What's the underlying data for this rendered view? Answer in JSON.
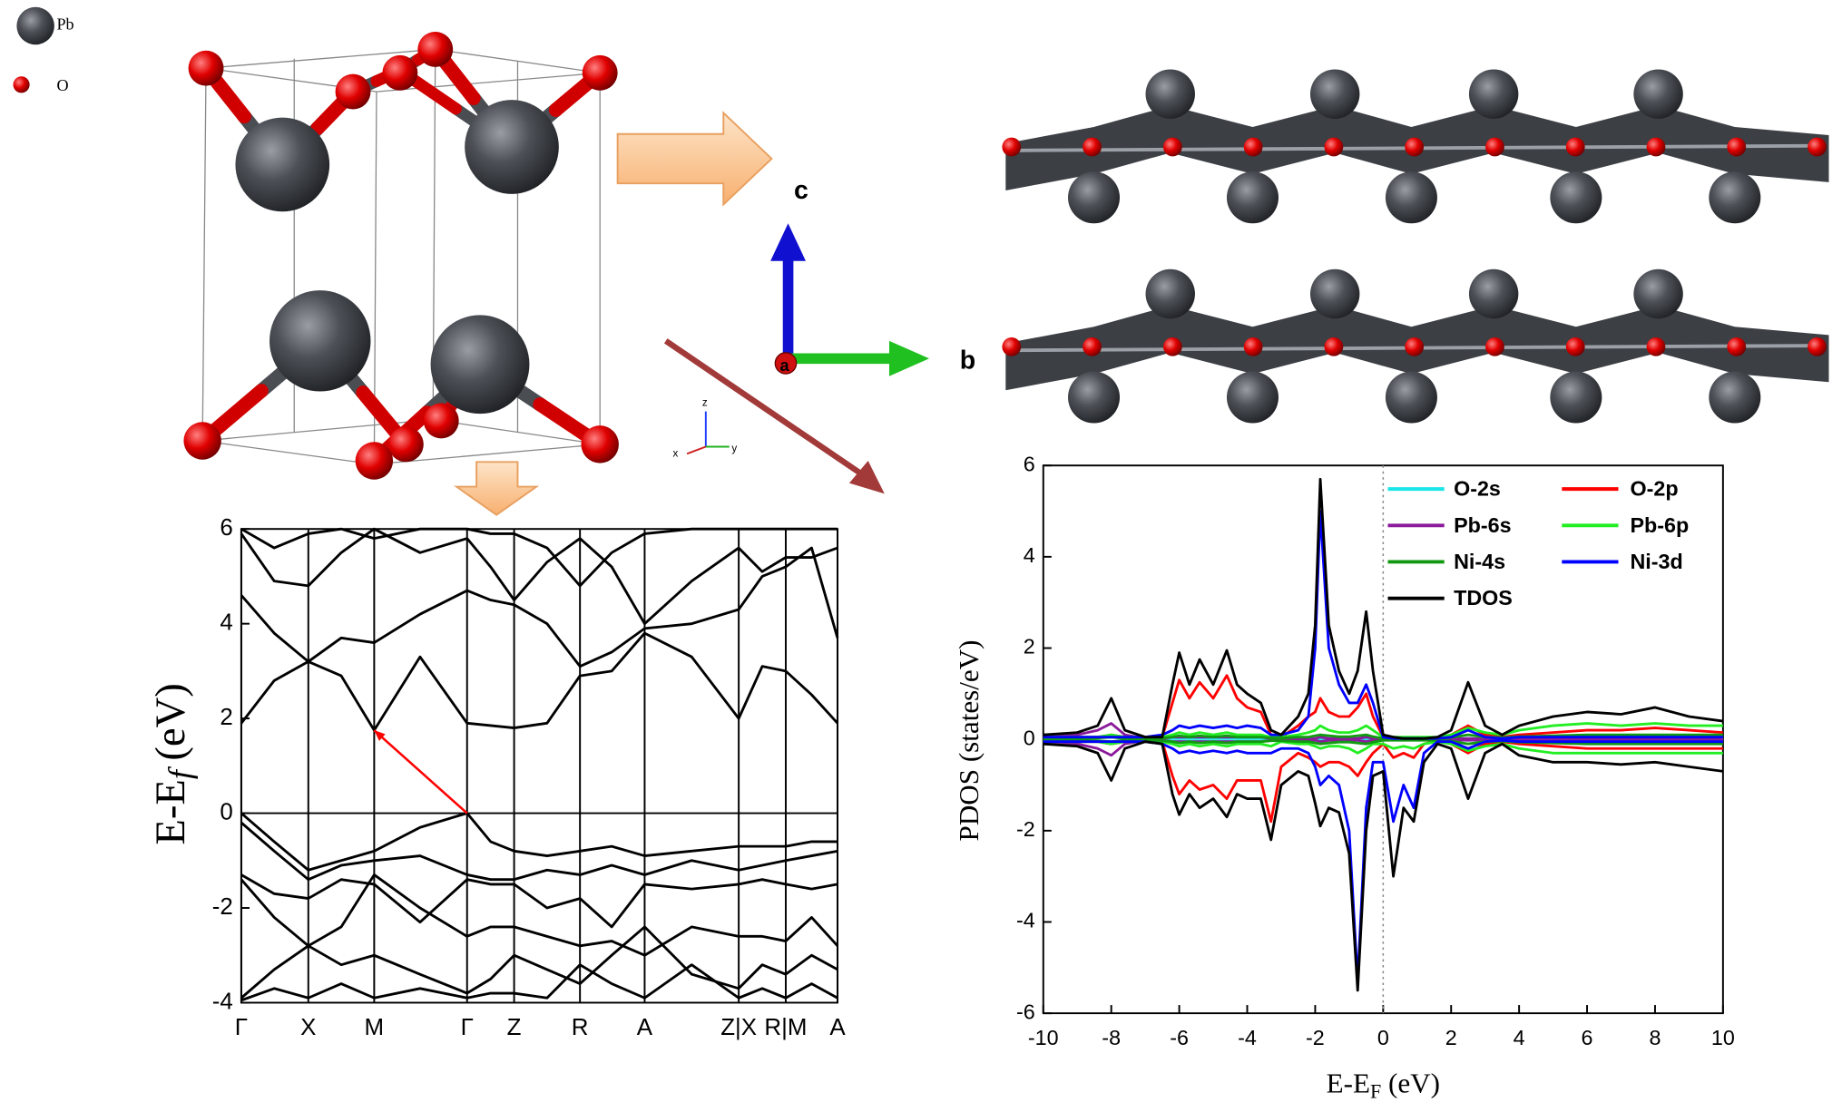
{
  "structure": {
    "atoms": [
      "Pb",
      "O"
    ],
    "axes": [
      "c",
      "a",
      "b"
    ],
    "triad": [
      "z",
      "x",
      "y"
    ]
  },
  "chart_data": [
    {
      "type": "line",
      "ylabel": [
        "E-E",
        "f",
        "(eV)"
      ],
      "xlim": [
        0,
        507
      ],
      "ylim": [
        -4,
        6
      ],
      "yticks": [
        -4,
        -2,
        0,
        2,
        4,
        6
      ],
      "xticks": [
        {
          "value": 0,
          "label": "Γ"
        },
        {
          "value": 57,
          "label": "X"
        },
        {
          "value": 113,
          "label": "M"
        },
        {
          "value": 192,
          "label": "Γ"
        },
        {
          "value": 232,
          "label": "Z"
        },
        {
          "value": 288,
          "label": "R"
        },
        {
          "value": 343,
          "label": "A"
        },
        {
          "value": 423,
          "label": "Z|X"
        },
        {
          "value": 463,
          "label": "R|M"
        },
        {
          "value": 507,
          "label": "A"
        }
      ],
      "xtick_lines": true,
      "fermi_line": "y",
      "color": "#000000",
      "x": [
        0,
        28,
        57,
        85,
        113,
        152,
        192,
        212,
        232,
        260,
        288,
        315,
        343,
        383,
        423,
        443,
        463,
        485,
        507
      ],
      "series": [
        {
          "values": [
            1.9,
            2.8,
            3.2,
            2.9,
            1.75,
            3.3,
            1.9,
            1.85,
            1.8,
            1.9,
            2.9,
            3.0,
            3.8,
            3.3,
            2.0,
            3.1,
            3.0,
            2.5,
            1.9
          ]
        },
        {
          "values": [
            4.6,
            3.8,
            3.2,
            3.7,
            3.6,
            4.2,
            4.7,
            4.5,
            4.4,
            4.0,
            3.1,
            3.4,
            3.9,
            4.0,
            4.3,
            5.0,
            5.2,
            5.6,
            3.7
          ]
        },
        {
          "values": [
            5.9,
            4.9,
            4.8,
            5.5,
            6.0,
            5.5,
            5.8,
            5.2,
            4.5,
            5.3,
            5.8,
            5.2,
            4.0,
            4.9,
            5.6,
            5.1,
            5.4,
            5.4,
            5.6
          ]
        },
        {
          "values": [
            6.0,
            5.6,
            5.9,
            6.0,
            5.8,
            6.0,
            6.0,
            5.9,
            5.9,
            5.6,
            4.8,
            5.5,
            5.9,
            6.0,
            6.0,
            6.0,
            6.0,
            6.0,
            6.0
          ]
        },
        {
          "values": [
            0,
            -0.6,
            -1.2,
            -1.0,
            -0.8,
            -0.3,
            0,
            -0.6,
            -0.8,
            -0.9,
            -0.8,
            -0.7,
            -0.9,
            -0.8,
            -0.7,
            -0.7,
            -0.7,
            -0.6,
            -0.6
          ]
        },
        {
          "values": [
            -0.2,
            -0.8,
            -1.4,
            -1.1,
            -1.0,
            -0.9,
            -1.3,
            -1.4,
            -1.4,
            -1.2,
            -1.3,
            -1.1,
            -1.3,
            -1.0,
            -1.2,
            -1.1,
            -1.0,
            -0.9,
            -0.8
          ]
        },
        {
          "values": [
            -1.3,
            -1.7,
            -1.8,
            -1.4,
            -1.5,
            -2.3,
            -1.4,
            -1.5,
            -1.5,
            -2.0,
            -1.8,
            -2.4,
            -1.5,
            -1.6,
            -1.5,
            -1.4,
            -1.5,
            -1.6,
            -1.5
          ]
        },
        {
          "values": [
            -1.4,
            -2.2,
            -2.8,
            -2.4,
            -1.3,
            -2.0,
            -2.6,
            -2.4,
            -2.4,
            -2.6,
            -2.8,
            -2.7,
            -3.0,
            -2.4,
            -2.6,
            -2.6,
            -2.7,
            -2.2,
            -2.8
          ]
        },
        {
          "values": [
            -3.9,
            -3.3,
            -2.8,
            -3.2,
            -3.0,
            -3.4,
            -3.8,
            -3.5,
            -3.0,
            -3.3,
            -3.6,
            -3.0,
            -2.4,
            -3.4,
            -3.7,
            -3.2,
            -3.4,
            -3.0,
            -3.3
          ]
        },
        {
          "values": [
            -3.95,
            -3.7,
            -3.9,
            -3.6,
            -3.9,
            -3.7,
            -3.9,
            -3.8,
            -3.8,
            -3.9,
            -3.2,
            -3.6,
            -3.9,
            -3.2,
            -3.9,
            -3.7,
            -3.9,
            -3.6,
            -3.9
          ]
        }
      ],
      "arrow": {
        "x": [
          192,
          113
        ],
        "y": [
          0,
          1.75
        ],
        "color": "#ff0000"
      }
    },
    {
      "type": "line",
      "xlabel": [
        "E-E",
        "F",
        "(eV)"
      ],
      "ylabel": "PDOS (states/eV)",
      "xlim": [
        -10,
        10
      ],
      "ylim": [
        -6,
        6
      ],
      "xticks": [
        -10,
        -8,
        -6,
        -4,
        -2,
        0,
        2,
        4,
        6,
        8,
        10
      ],
      "yticks": [
        -6,
        -4,
        -2,
        0,
        2,
        4,
        6
      ],
      "fermi_line": "x",
      "legend": "upper right",
      "x": [
        -10,
        -9,
        -8.4,
        -8,
        -7.6,
        -7,
        -6.5,
        -6.2,
        -6,
        -5.7,
        -5.4,
        -5,
        -4.6,
        -4.3,
        -4,
        -3.6,
        -3.3,
        -3,
        -2.5,
        -2.2,
        -2,
        -1.85,
        -1.6,
        -1.3,
        -1,
        -0.75,
        -0.5,
        -0.3,
        0,
        0.3,
        0.6,
        0.9,
        1.2,
        1.6,
        2,
        2.5,
        3,
        3.5,
        4,
        5,
        6,
        7,
        8,
        9,
        10
      ],
      "series": [
        {
          "name": "O-2s",
          "color": "#19e6e6",
          "values": [
            0.03,
            0.03,
            0.04,
            0.05,
            0.03,
            0.02,
            0.02,
            0.03,
            0.03,
            0.03,
            0.03,
            0.03,
            0.03,
            0.03,
            0.03,
            0.03,
            0.02,
            0.02,
            0.02,
            0.02,
            0.02,
            0.03,
            0.02,
            0.02,
            0.02,
            0.02,
            0.03,
            0.02,
            0.01,
            0.01,
            0.01,
            0.01,
            0.01,
            0.01,
            0.01,
            0.02,
            0.01,
            0.01,
            0.01,
            0.02,
            0.02,
            0.02,
            0.02,
            0.02,
            0.02
          ],
          "values_down": [
            -0.03,
            -0.03,
            -0.04,
            -0.05,
            -0.03,
            -0.02,
            -0.02,
            -0.03,
            -0.03,
            -0.03,
            -0.03,
            -0.03,
            -0.03,
            -0.03,
            -0.03,
            -0.03,
            -0.02,
            -0.02,
            -0.02,
            -0.02,
            -0.02,
            -0.03,
            -0.02,
            -0.02,
            -0.02,
            -0.02,
            -0.03,
            -0.02,
            -0.01,
            -0.01,
            -0.01,
            -0.01,
            -0.01,
            -0.01,
            -0.01,
            -0.02,
            -0.01,
            -0.01,
            -0.01,
            -0.02,
            -0.02,
            -0.02,
            -0.02,
            -0.02,
            -0.02
          ]
        },
        {
          "name": "O-2p",
          "color": "#ff0000",
          "values": [
            0.05,
            0.05,
            0.05,
            0.1,
            0.05,
            0.02,
            0.05,
            0.8,
            1.3,
            0.9,
            1.25,
            0.9,
            1.4,
            0.9,
            0.7,
            0.6,
            0.1,
            0.05,
            0.3,
            0.5,
            0.6,
            0.9,
            0.6,
            0.5,
            0.5,
            0.7,
            1.0,
            0.5,
            0.05,
            0.02,
            0.02,
            0.02,
            0.02,
            0.03,
            0.1,
            0.3,
            0.1,
            0.05,
            0.1,
            0.15,
            0.2,
            0.2,
            0.25,
            0.2,
            0.15
          ],
          "values_down": [
            -0.05,
            -0.05,
            -0.05,
            -0.1,
            -0.05,
            -0.02,
            -0.05,
            -0.8,
            -1.2,
            -0.9,
            -1.1,
            -1.0,
            -1.3,
            -0.9,
            -0.9,
            -0.9,
            -1.8,
            -0.6,
            -0.3,
            -0.4,
            -0.5,
            -0.6,
            -0.5,
            -0.5,
            -0.6,
            -0.8,
            -0.5,
            -0.3,
            -0.1,
            -0.4,
            -0.3,
            -0.4,
            -0.1,
            -0.03,
            -0.1,
            -0.3,
            -0.1,
            -0.05,
            -0.1,
            -0.15,
            -0.2,
            -0.2,
            -0.2,
            -0.2,
            -0.2
          ]
        },
        {
          "name": "Pb-6s",
          "color": "#8b1a9b",
          "values": [
            0.1,
            0.1,
            0.2,
            0.35,
            0.1,
            0.02,
            0.02,
            0.05,
            0.05,
            0.05,
            0.05,
            0.05,
            0.05,
            0.05,
            0.05,
            0.05,
            0.02,
            0.02,
            0.02,
            0.02,
            0.02,
            0.05,
            0.02,
            0.02,
            0.02,
            0.02,
            0.05,
            0.02,
            0.01,
            0.01,
            0.01,
            0.01,
            0.01,
            0.01,
            0.01,
            0.02,
            0.01,
            0.01,
            0.01,
            0.02,
            0.02,
            0.02,
            0.02,
            0.02,
            0.02
          ],
          "values_down": [
            -0.1,
            -0.1,
            -0.2,
            -0.35,
            -0.1,
            -0.02,
            -0.02,
            -0.05,
            -0.05,
            -0.05,
            -0.05,
            -0.05,
            -0.05,
            -0.05,
            -0.05,
            -0.05,
            -0.02,
            -0.02,
            -0.02,
            -0.02,
            -0.02,
            -0.05,
            -0.02,
            -0.02,
            -0.02,
            -0.02,
            -0.05,
            -0.02,
            -0.01,
            -0.01,
            -0.01,
            -0.01,
            -0.01,
            -0.01,
            -0.01,
            -0.02,
            -0.01,
            -0.01,
            -0.01,
            -0.02,
            -0.02,
            -0.02,
            -0.02,
            -0.02,
            -0.02
          ]
        },
        {
          "name": "Pb-6p",
          "color": "#22ee22",
          "values": [
            0.05,
            0.05,
            0.05,
            0.1,
            0.05,
            0.05,
            0.05,
            0.1,
            0.15,
            0.1,
            0.15,
            0.1,
            0.15,
            0.1,
            0.1,
            0.1,
            0.05,
            0.05,
            0.1,
            0.15,
            0.2,
            0.3,
            0.2,
            0.15,
            0.15,
            0.2,
            0.3,
            0.2,
            0.05,
            0.05,
            0.05,
            0.05,
            0.05,
            0.05,
            0.1,
            0.25,
            0.15,
            0.1,
            0.2,
            0.3,
            0.35,
            0.3,
            0.35,
            0.3,
            0.3
          ],
          "values_down": [
            -0.05,
            -0.05,
            -0.05,
            -0.1,
            -0.05,
            -0.05,
            -0.05,
            -0.1,
            -0.15,
            -0.1,
            -0.15,
            -0.1,
            -0.15,
            -0.1,
            -0.1,
            -0.1,
            -0.15,
            -0.05,
            -0.1,
            -0.1,
            -0.15,
            -0.2,
            -0.15,
            -0.15,
            -0.2,
            -0.3,
            -0.2,
            -0.1,
            -0.1,
            -0.2,
            -0.15,
            -0.2,
            -0.1,
            -0.05,
            -0.1,
            -0.25,
            -0.15,
            -0.1,
            -0.2,
            -0.3,
            -0.3,
            -0.3,
            -0.3,
            -0.3,
            -0.3
          ]
        },
        {
          "name": "Ni-4s",
          "color": "#119911",
          "values": [
            0.02,
            0.02,
            0.03,
            0.05,
            0.02,
            0.02,
            0.03,
            0.05,
            0.08,
            0.05,
            0.08,
            0.05,
            0.08,
            0.05,
            0.05,
            0.05,
            0.03,
            0.03,
            0.05,
            0.05,
            0.08,
            0.1,
            0.08,
            0.06,
            0.06,
            0.08,
            0.1,
            0.06,
            0.02,
            0.02,
            0.02,
            0.02,
            0.02,
            0.02,
            0.04,
            0.1,
            0.05,
            0.04,
            0.06,
            0.08,
            0.1,
            0.1,
            0.1,
            0.1,
            0.1
          ],
          "values_down": [
            -0.02,
            -0.02,
            -0.03,
            -0.05,
            -0.02,
            -0.02,
            -0.03,
            -0.05,
            -0.08,
            -0.05,
            -0.08,
            -0.05,
            -0.08,
            -0.05,
            -0.05,
            -0.05,
            -0.03,
            -0.03,
            -0.05,
            -0.05,
            -0.08,
            -0.1,
            -0.08,
            -0.06,
            -0.06,
            -0.08,
            -0.1,
            -0.06,
            -0.02,
            -0.02,
            -0.02,
            -0.02,
            -0.02,
            -0.02,
            -0.04,
            -0.1,
            -0.05,
            -0.04,
            -0.06,
            -0.08,
            -0.1,
            -0.1,
            -0.1,
            -0.1,
            -0.1
          ]
        },
        {
          "name": "Ni-3d",
          "color": "#0000ff",
          "values": [
            0.05,
            0.05,
            0.05,
            0.05,
            0.05,
            0.05,
            0.1,
            0.2,
            0.3,
            0.25,
            0.3,
            0.25,
            0.3,
            0.25,
            0.3,
            0.25,
            0.1,
            0.1,
            0.2,
            0.5,
            2.0,
            5.0,
            2.0,
            1.2,
            0.8,
            0.8,
            1.2,
            0.8,
            0.05,
            0.02,
            0.02,
            0.02,
            0.02,
            0.02,
            0.05,
            0.2,
            0.05,
            0.02,
            0.05,
            0.05,
            0.05,
            0.05,
            0.05,
            0.05,
            0.05
          ],
          "values_down": [
            -0.05,
            -0.05,
            -0.05,
            -0.05,
            -0.05,
            -0.05,
            -0.1,
            -0.2,
            -0.3,
            -0.25,
            -0.3,
            -0.25,
            -0.3,
            -0.25,
            -0.3,
            -0.3,
            -0.3,
            -0.2,
            -0.2,
            -0.3,
            -0.6,
            -1.0,
            -0.8,
            -1.0,
            -2.0,
            -5.3,
            -1.5,
            -0.5,
            -0.5,
            -1.8,
            -1.0,
            -1.5,
            -0.3,
            -0.05,
            -0.05,
            -0.2,
            -0.05,
            -0.02,
            -0.05,
            -0.05,
            -0.05,
            -0.05,
            -0.05,
            -0.05,
            -0.05
          ]
        },
        {
          "name": "TDOS",
          "color": "#000000",
          "values": [
            0.1,
            0.15,
            0.3,
            0.9,
            0.2,
            0.05,
            0.05,
            1.2,
            1.9,
            1.2,
            1.75,
            1.2,
            1.95,
            1.2,
            1.0,
            0.8,
            0.2,
            0.1,
            0.5,
            1.0,
            2.5,
            5.7,
            2.5,
            1.5,
            1.0,
            1.5,
            2.8,
            1.5,
            0.1,
            0.05,
            0.02,
            0.02,
            0.02,
            0.05,
            0.2,
            1.25,
            0.3,
            0.1,
            0.3,
            0.5,
            0.6,
            0.55,
            0.7,
            0.5,
            0.4
          ],
          "values_down": [
            -0.1,
            -0.15,
            -0.3,
            -0.9,
            -0.2,
            -0.05,
            -0.1,
            -1.2,
            -1.65,
            -1.2,
            -1.5,
            -1.3,
            -1.7,
            -1.2,
            -1.3,
            -1.3,
            -2.2,
            -1.0,
            -0.7,
            -0.8,
            -1.4,
            -1.9,
            -1.5,
            -1.6,
            -2.5,
            -5.5,
            -2.0,
            -0.8,
            -0.7,
            -3.0,
            -1.5,
            -1.8,
            -0.5,
            -0.1,
            -0.2,
            -1.3,
            -0.3,
            -0.1,
            -0.35,
            -0.5,
            -0.5,
            -0.55,
            -0.5,
            -0.6,
            -0.7
          ]
        }
      ]
    }
  ]
}
